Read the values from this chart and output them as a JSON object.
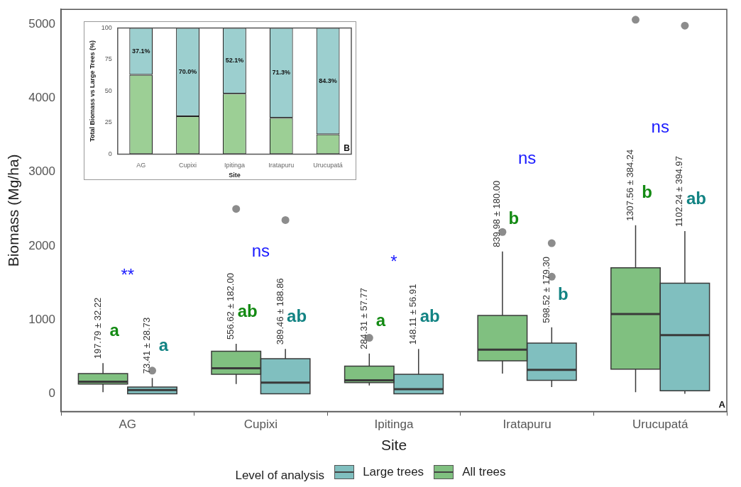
{
  "chart_data": [
    {
      "type": "box",
      "xlabel": "Site",
      "ylabel": "Biomass (Mg/ha)",
      "categories": [
        "AG",
        "Cupixi",
        "Ipitinga",
        "Iratapuru",
        "Urucupatá"
      ],
      "ylim": [
        -240,
        5200
      ],
      "yticks": [
        0,
        1000,
        2000,
        3000,
        4000,
        5000
      ],
      "legend": "bottom",
      "legend_title": "Level of analysis",
      "series": [
        {
          "name": "All trees",
          "color": "#80c080",
          "value_labels": [
            "197.79 ± 32.22",
            "556.62 ± 182.00",
            "284.31 ± 57.77",
            "839.98 ± 180.00",
            "1307.56 ± 384.24"
          ],
          "boxes": [
            {
              "low": 20,
              "q1": 131,
              "median": 161,
              "q3": 272,
              "high": 413
            },
            {
              "low": 131,
              "q1": 262,
              "median": 343,
              "q3": 575,
              "high": 675,
              "outliers": [
                2500
              ]
            },
            {
              "low": 111,
              "q1": 151,
              "median": 181,
              "q3": 373,
              "high": 544,
              "outliers": [
                756
              ]
            },
            {
              "low": 272,
              "q1": 444,
              "median": 595,
              "q3": 1058,
              "high": 1925,
              "outliers": [
                2188
              ]
            },
            {
              "low": 20,
              "q1": 333,
              "median": 1079,
              "q3": 1704,
              "high": 2278,
              "outliers": [
                5060
              ]
            }
          ]
        },
        {
          "name": "Large trees",
          "color": "#80bfbf",
          "value_labels": [
            "73.41 ± 28.73",
            "389.46 ± 188.86",
            "148.11 ± 56.91",
            "598.52 ± 179.30",
            "1102.24 ± 394.97"
          ],
          "boxes": [
            {
              "low": 0,
              "q1": 0,
              "median": 50,
              "q3": 91,
              "high": 212,
              "outliers": [
                312
              ]
            },
            {
              "low": 0,
              "q1": 0,
              "median": 151,
              "q3": 474,
              "high": 605,
              "outliers": [
                2349
              ]
            },
            {
              "low": 0,
              "q1": 0,
              "median": 60,
              "q3": 262,
              "high": 605
            },
            {
              "low": 91,
              "q1": 181,
              "median": 323,
              "q3": 685,
              "high": 897,
              "outliers": [
                2036,
                1583
              ]
            },
            {
              "low": 0,
              "q1": 40,
              "median": 793,
              "q3": 1496,
              "high": 2199,
              "outliers": [
                4980
              ]
            }
          ]
        }
      ],
      "annotations": [
        "a",
        "**",
        "a",
        "ab",
        "ns",
        "ab",
        "a",
        "*",
        "ab",
        "b",
        "ns",
        "b",
        "b",
        "ns",
        "ab",
        "A"
      ]
    },
    {
      "type": "bar",
      "stacked": true,
      "xlabel": "Site",
      "ylabel": "Total Biomass vs Large Trees (%)",
      "categories": [
        "AG",
        "Cupixi",
        "Ipitinga",
        "Iratapuru",
        "Urucupatá"
      ],
      "ylim": [
        0,
        100
      ],
      "yticks": [
        0,
        25,
        50,
        75,
        100
      ],
      "series": [
        {
          "color": "#9ccf95",
          "values": [
            62.9,
            30.0,
            47.9,
            28.7,
            15.7
          ]
        },
        {
          "color": "#9ccfcf",
          "values": [
            37.1,
            70.0,
            52.1,
            71.3,
            84.3
          ],
          "value_labels": [
            "37.1%",
            "70.0%",
            "52.1%",
            "71.3%",
            "84.3%"
          ]
        }
      ],
      "annotations": [
        "B"
      ]
    }
  ]
}
